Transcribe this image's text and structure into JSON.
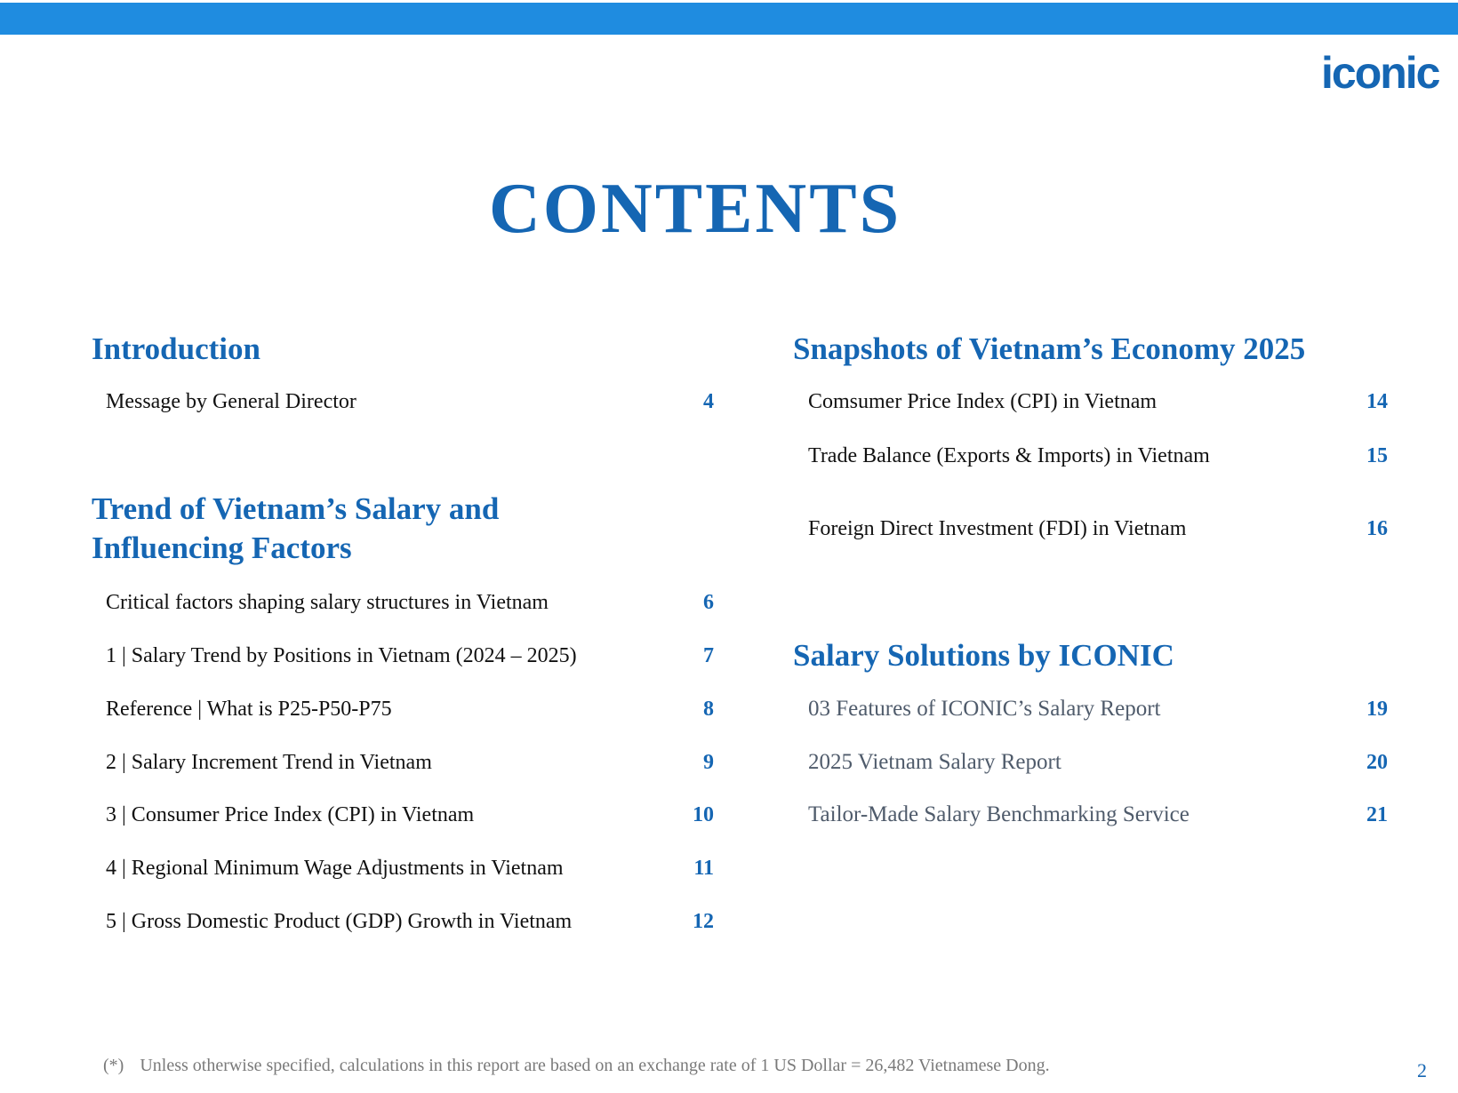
{
  "colors": {
    "bar": "#1f8ce0",
    "accent": "#1566b3"
  },
  "logo": "iconic",
  "title": "CONTENTS",
  "left": {
    "intro": {
      "heading": "Introduction",
      "items": [
        {
          "label": "Message by General Director",
          "page": "4"
        }
      ]
    },
    "trend": {
      "heading_line1": "Trend of Vietnam’s Salary and",
      "heading_line2": "Influencing Factors",
      "items": [
        {
          "label": "Critical factors shaping salary structures in Vietnam",
          "page": "6"
        },
        {
          "label": "1 | Salary Trend by Positions in Vietnam (2024 – 2025)",
          "page": "7"
        },
        {
          "label": "Reference | What is P25-P50-P75",
          "page": "8"
        },
        {
          "label": "2 | Salary Increment Trend in Vietnam",
          "page": "9"
        },
        {
          "label": "3 | Consumer Price Index (CPI) in Vietnam",
          "page": "10"
        },
        {
          "label": "4 | Regional Minimum Wage Adjustments in Vietnam",
          "page": "11"
        },
        {
          "label": "5 | Gross Domestic Product (GDP) Growth in Vietnam",
          "page": "12"
        }
      ]
    }
  },
  "right": {
    "snapshots": {
      "heading": "Snapshots of Vietnam’s Economy 2025",
      "items": [
        {
          "label": "Comsumer Price Index (CPI) in Vietnam",
          "page": "14"
        },
        {
          "label": "Trade Balance (Exports & Imports) in Vietnam",
          "page": "15"
        },
        {
          "label": "Foreign Direct Investment (FDI) in Vietnam",
          "page": "16"
        }
      ]
    },
    "solutions": {
      "heading": "Salary Solutions by ICONIC",
      "items": [
        {
          "label": "03 Features of ICONIC’s Salary Report",
          "page": "19"
        },
        {
          "label": "2025 Vietnam Salary Report",
          "page": "20"
        },
        {
          "label": "Tailor-Made Salary Benchmarking Service",
          "page": "21"
        }
      ]
    }
  },
  "footer": {
    "marker": "(*)",
    "note": "Unless otherwise specified, calculations in this report are based on an exchange rate of 1 US Dollar = 26,482 Vietnamese Dong.",
    "page_number": "2"
  }
}
